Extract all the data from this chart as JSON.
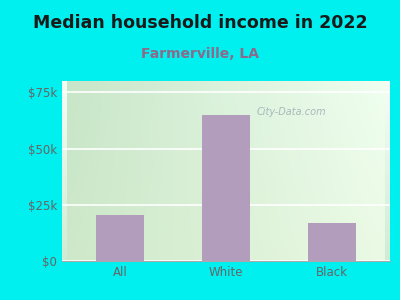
{
  "title": "Median household income in 2022",
  "subtitle": "Farmerville, LA",
  "categories": [
    "All",
    "White",
    "Black"
  ],
  "values": [
    20500,
    65000,
    17000
  ],
  "bar_color": "#b39dbd",
  "outer_bg": "#00efef",
  "plot_bg_top_left": "#d4edda",
  "plot_bg_top_right": "#f0f8f0",
  "plot_bg_bottom": "#e8f5e9",
  "yticks": [
    0,
    25000,
    50000,
    75000
  ],
  "ytick_labels": [
    "$0",
    "$25k",
    "$50k",
    "$75k"
  ],
  "title_color": "#1a1a1a",
  "subtitle_color": "#8b6a8b",
  "axis_color": "#666666",
  "watermark": "City-Data.com",
  "title_fontsize": 12.5,
  "subtitle_fontsize": 10,
  "tick_fontsize": 8.5,
  "ylim_max": 80000
}
